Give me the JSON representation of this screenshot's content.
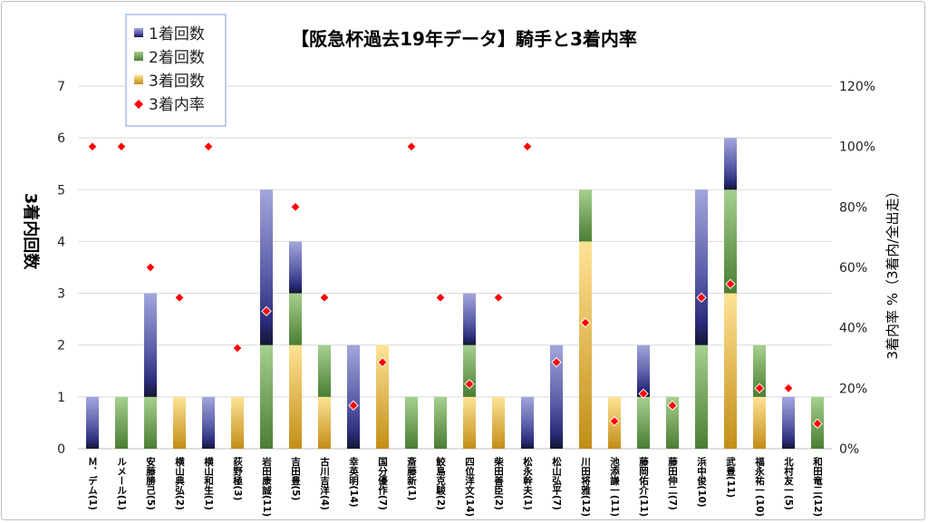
{
  "chart_data": {
    "type": "bar",
    "title": "【阪急杯過去19年データ】騎手と3着内率",
    "ylabel": "3着内回数",
    "y2label": "3着内率 %（3着内/全出走）",
    "ylim": [
      0,
      7
    ],
    "y2lim": [
      0,
      120
    ],
    "yticks": [
      "0",
      "1",
      "2",
      "3",
      "4",
      "5",
      "6",
      "7"
    ],
    "y2ticks": [
      "0%",
      "20%",
      "40%",
      "60%",
      "80%",
      "100%",
      "120%"
    ],
    "grid": true,
    "legend_position": "top-left",
    "categories": [
      "Ｍ．デム(1)",
      "ルメール(1)",
      "安藤勝己(5)",
      "横山典弘(2)",
      "横山和生(1)",
      "荻野極(3)",
      "岩田康誠(11)",
      "吉田豊(5)",
      "古川吉洋(4)",
      "幸英明(14)",
      "国分優作(7)",
      "斎藤新(1)",
      "鮫島克駿(2)",
      "四位洋文(14)",
      "柴田善臣(2)",
      "松永幹夫(1)",
      "松山弘平(7)",
      "川田将雅(12)",
      "池添謙一(11)",
      "藤岡佑介(11)",
      "藤田伸二(7)",
      "浜中俊(10)",
      "武豊(11)",
      "福永祐一(10)",
      "北村友一(5)",
      "和田竜二(12)"
    ],
    "series": [
      {
        "name": "1着回数",
        "type": "bar",
        "color": "#3b3f8f",
        "values": [
          1,
          0,
          2,
          0,
          1,
          0,
          3,
          1,
          0,
          2,
          0,
          0,
          0,
          1,
          0,
          1,
          2,
          0,
          0,
          1,
          0,
          3,
          1,
          0,
          1,
          0
        ]
      },
      {
        "name": "2着回数",
        "type": "bar",
        "color": "#5a9444",
        "values": [
          0,
          1,
          1,
          0,
          0,
          0,
          2,
          1,
          1,
          0,
          0,
          1,
          1,
          1,
          0,
          0,
          0,
          1,
          0,
          1,
          1,
          2,
          2,
          1,
          0,
          1
        ]
      },
      {
        "name": "3着回数",
        "type": "bar",
        "color": "#d9a532",
        "values": [
          0,
          0,
          0,
          1,
          0,
          1,
          0,
          2,
          1,
          0,
          2,
          0,
          0,
          1,
          1,
          0,
          0,
          4,
          1,
          0,
          0,
          0,
          3,
          1,
          0,
          0
        ]
      },
      {
        "name": "3着内率",
        "type": "scatter",
        "axis": "right",
        "color": "#ff0000",
        "values": [
          100,
          100,
          60,
          50,
          100,
          33.3,
          45.5,
          80,
          50,
          14.3,
          28.6,
          100,
          50,
          21.4,
          50,
          100,
          28.6,
          41.7,
          9.1,
          18.2,
          14.3,
          50,
          54.5,
          20,
          20,
          8.3
        ]
      }
    ]
  }
}
